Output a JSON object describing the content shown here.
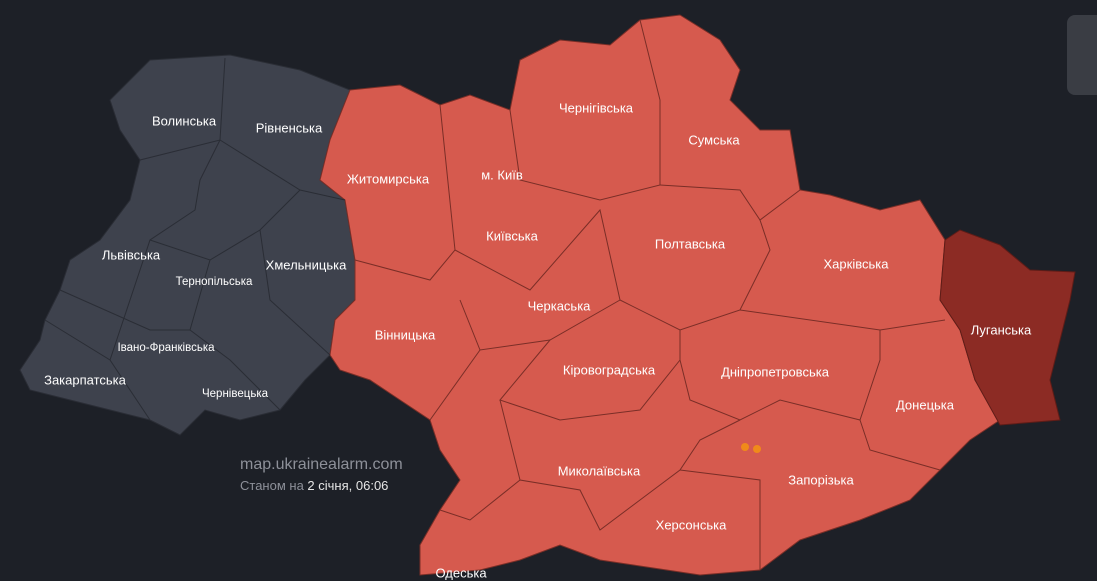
{
  "regions": [
    {
      "label": "Волинська"
    },
    {
      "label": "Рівненська"
    },
    {
      "label": "Житомирська"
    },
    {
      "label": "Чернігівська"
    },
    {
      "label": "Сумська"
    },
    {
      "label": "м. Київ"
    },
    {
      "label": "Київська"
    },
    {
      "label": "Львівська"
    },
    {
      "label": "Тернопільська"
    },
    {
      "label": "Хмельницька"
    },
    {
      "label": "Полтавська"
    },
    {
      "label": "Харківська"
    },
    {
      "label": "Луганська"
    },
    {
      "label": "Вінницька"
    },
    {
      "label": "Черкаська"
    },
    {
      "label": "Івано-Франківська"
    },
    {
      "label": "Закарпатська"
    },
    {
      "label": "Чернівецька"
    },
    {
      "label": "Кіровоградська"
    },
    {
      "label": "Дніпропетровська"
    },
    {
      "label": "Донецька"
    },
    {
      "label": "Миколаївська"
    },
    {
      "label": "Запорізька"
    },
    {
      "label": "Херсонська"
    },
    {
      "label": "Одеська"
    }
  ],
  "source": "map.ukrainealarm.com",
  "status_prefix": "Станом на",
  "status_date": "2 січня, 06:06"
}
